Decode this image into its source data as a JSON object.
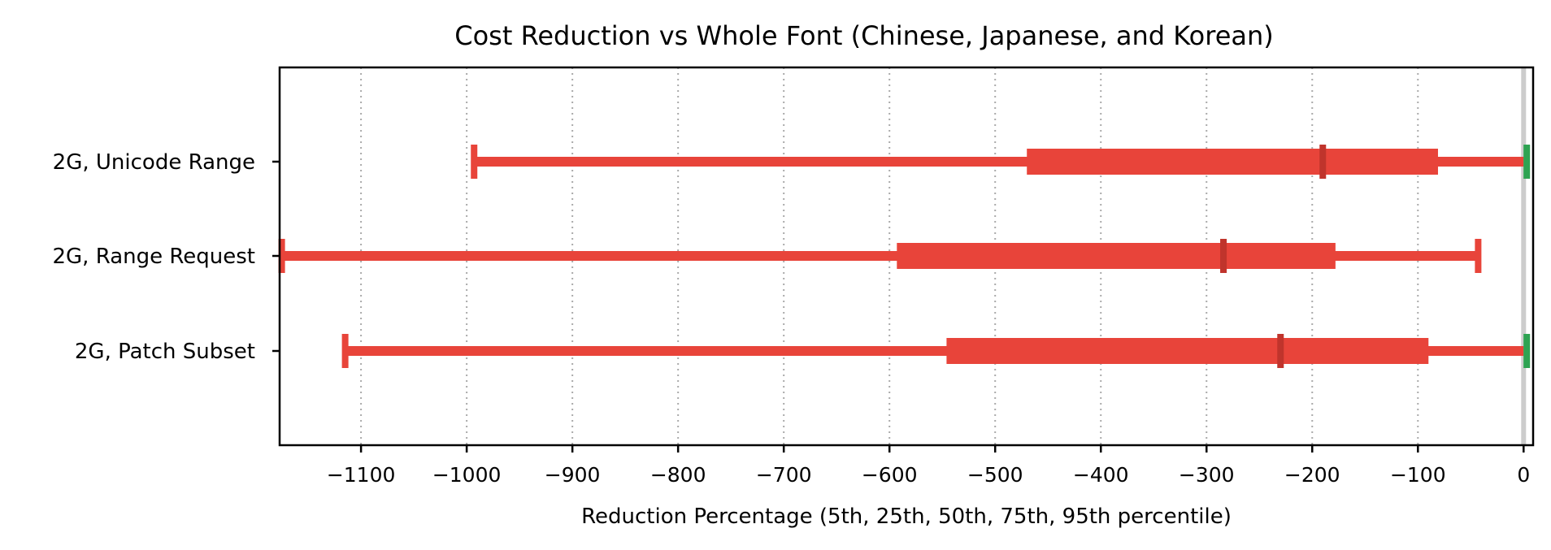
{
  "chart_data": {
    "type": "box-range",
    "title": "Cost Reduction vs Whole Font (Chinese, Japanese, and Korean)",
    "xlabel": "Reduction Percentage (5th, 25th, 50th, 75th, 95th percentile)",
    "ylabel": "",
    "xlim": [
      -1177,
      9
    ],
    "xticks": [
      -1100,
      -1000,
      -900,
      -800,
      -700,
      -600,
      -500,
      -400,
      -300,
      -200,
      -100,
      0
    ],
    "xtick_labels": [
      "−1100",
      "−1000",
      "−900",
      "−800",
      "−700",
      "−600",
      "−500",
      "−400",
      "−300",
      "−200",
      "−100",
      "0"
    ],
    "grid": "vertical dotted",
    "reference_line": 0,
    "categories": [
      "2G, Unicode Range",
      "2G, Range Request",
      "2G, Patch Subset"
    ],
    "series": [
      {
        "category": "2G, Unicode Range",
        "p5": -993,
        "p25": -470,
        "p50": -190,
        "p75": -81,
        "p95": 3
      },
      {
        "category": "2G, Range Request",
        "p5": -1175,
        "p25": -593,
        "p50": -284,
        "p75": -178,
        "p95": -43
      },
      {
        "category": "2G, Patch Subset",
        "p5": -1115,
        "p25": -546,
        "p50": -230,
        "p75": -90,
        "p95": 3
      }
    ],
    "colors": {
      "bar": "#e8443a",
      "median": "#c0342c",
      "positive_end": "#2ea352",
      "reference_line": "#cccccc",
      "grid": "#aaaaaa"
    }
  }
}
